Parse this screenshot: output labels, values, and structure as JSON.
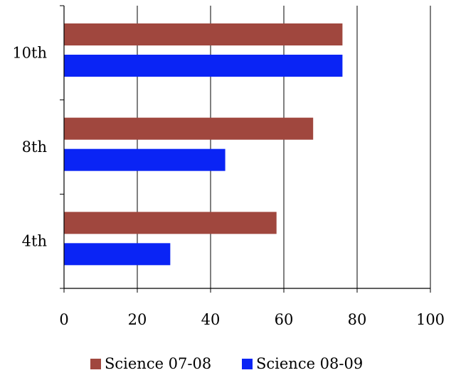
{
  "chart_data": {
    "type": "bar",
    "orientation": "horizontal",
    "categories": [
      "4th",
      "8th",
      "10th"
    ],
    "series": [
      {
        "name": "Science 07-08",
        "values": [
          58,
          68,
          76
        ],
        "color": "#A0473E"
      },
      {
        "name": "Science 08-09",
        "values": [
          29,
          44,
          76
        ],
        "color": "#0A24F5"
      }
    ],
    "x_ticks": [
      "0",
      "20",
      "40",
      "60",
      "80",
      "100"
    ],
    "xlim": [
      0,
      100
    ],
    "title": "",
    "xlabel": "",
    "ylabel": "",
    "grid": "vertical",
    "legend": "bottom"
  }
}
